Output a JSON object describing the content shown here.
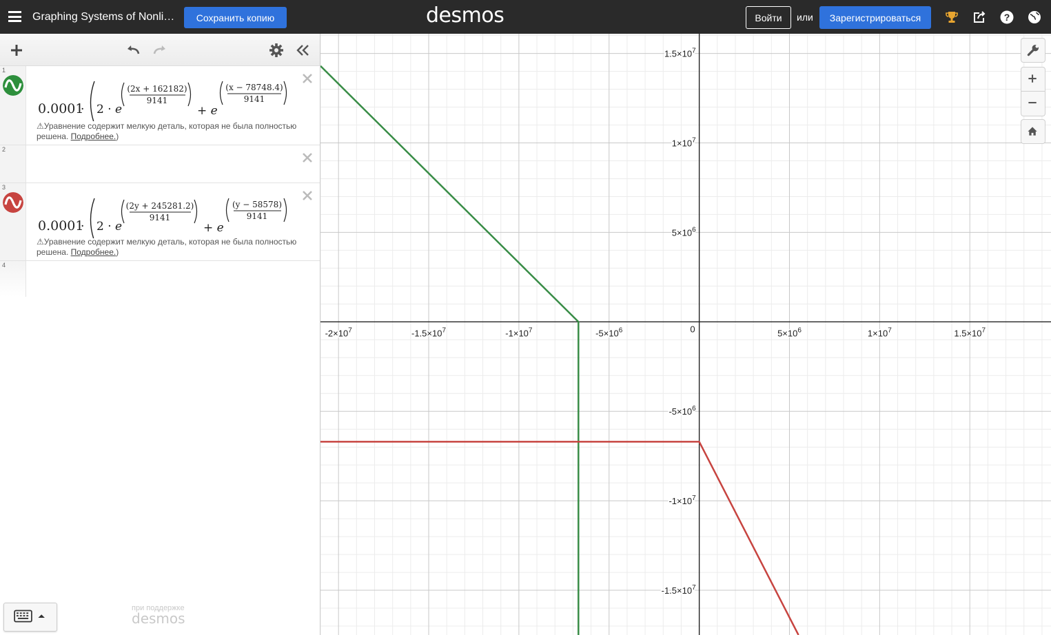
{
  "header": {
    "graph_title": "Graphing Systems of Nonli…",
    "save_copy_label": "Сохранить копию",
    "brand": "desmos",
    "login_label": "Войти",
    "or_text": "или",
    "signup_label": "Зарегистрироваться"
  },
  "expressions": [
    {
      "index": "1",
      "color": "#2d8f3c",
      "coeff": "0.0001",
      "num1": "(2x + 162182)",
      "den1": "9141",
      "num2": "(x − 78748.4)",
      "den2": "9141",
      "warning": "Уравнение содержит мелкую деталь, которая не была полностью решена.",
      "more_link": "Подробнее."
    },
    {
      "index": "2"
    },
    {
      "index": "3",
      "color": "#c74440",
      "coeff": "0.0001",
      "num1": "(2y + 245281.2)",
      "den1": "9141",
      "num2": "(y − 58578)",
      "den2": "9141",
      "warning": "Уравнение содержит мелкую деталь, которая не была полностью решена.",
      "more_link": "Подробнее."
    },
    {
      "index": "4"
    }
  ],
  "footer": {
    "powered_by": "при поддержке",
    "brand": "desmos"
  },
  "graph": {
    "x_range": [
      -21000000,
      19500000
    ],
    "y_range": [
      -17500000,
      16100000
    ],
    "major_step": 5000000,
    "minor_step": 1000000,
    "x_tick_labels": [
      {
        "value": -20000000,
        "mant": "-2",
        "exp": "7"
      },
      {
        "value": -15000000,
        "mant": "-1.5",
        "exp": "7"
      },
      {
        "value": -10000000,
        "mant": "-1",
        "exp": "7"
      },
      {
        "value": -5000000,
        "mant": "-5",
        "exp": "6"
      },
      {
        "value": 5000000,
        "mant": "5",
        "exp": "6"
      },
      {
        "value": 10000000,
        "mant": "1",
        "exp": "7"
      },
      {
        "value": 15000000,
        "mant": "1.5",
        "exp": "7"
      }
    ],
    "y_tick_labels": [
      {
        "value": 15000000,
        "mant": "1.5",
        "exp": "7"
      },
      {
        "value": 10000000,
        "mant": "1",
        "exp": "7"
      },
      {
        "value": 5000000,
        "mant": "5",
        "exp": "6"
      },
      {
        "value": -5000000,
        "mant": "-5",
        "exp": "6"
      },
      {
        "value": -10000000,
        "mant": "-1",
        "exp": "7"
      },
      {
        "value": -15000000,
        "mant": "-1.5",
        "exp": "7"
      }
    ],
    "origin_label": "0",
    "curves": [
      {
        "color": "#388c46",
        "points": [
          [
            -21000000,
            14300000
          ],
          [
            -6700000,
            0
          ],
          [
            -6700000,
            -17500000
          ]
        ]
      },
      {
        "color": "#c74440",
        "points": [
          [
            -21000000,
            -6700000
          ],
          [
            0,
            -6700000
          ],
          [
            5500000,
            -17500000
          ]
        ]
      }
    ]
  }
}
